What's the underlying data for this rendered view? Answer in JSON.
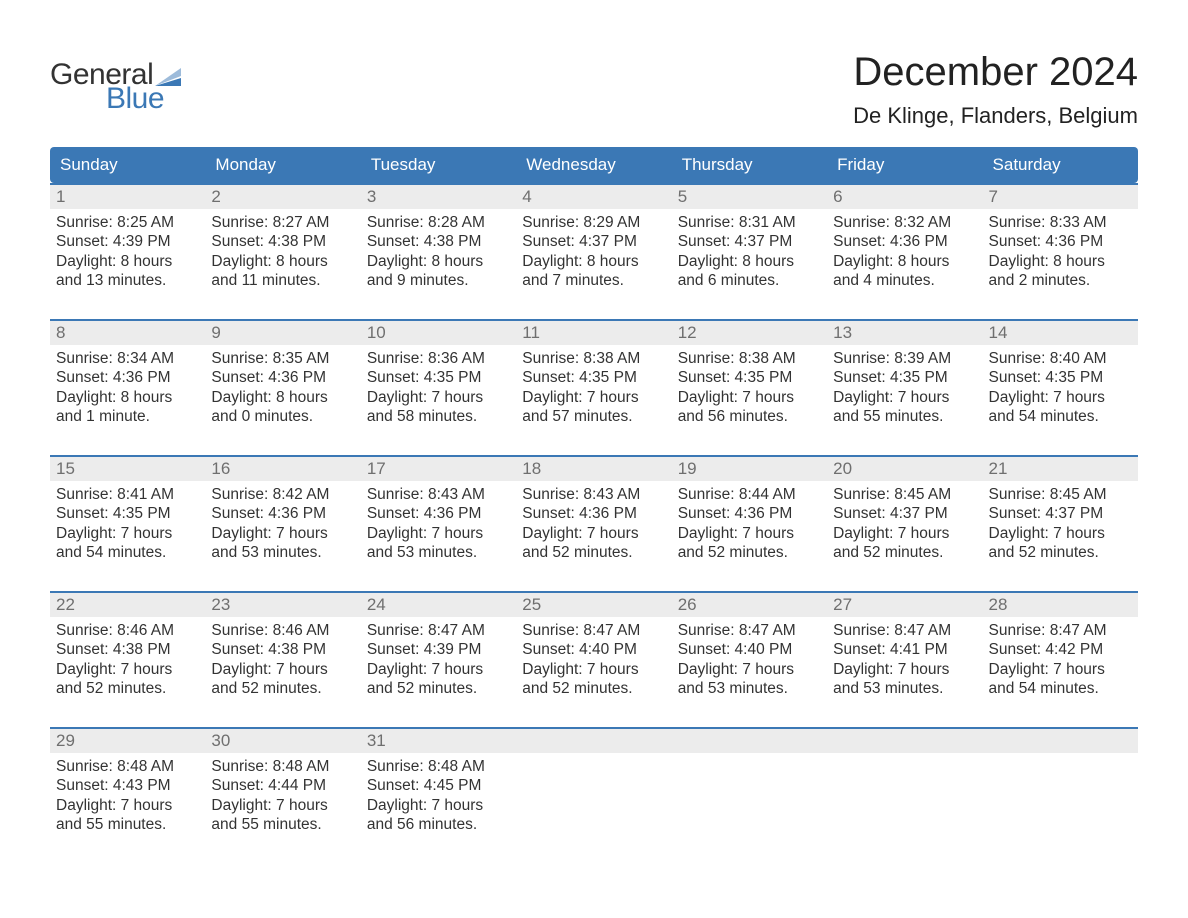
{
  "brand": {
    "text_general": "General",
    "text_blue": "Blue",
    "flag_color": "#3b78b5"
  },
  "header": {
    "month_title": "December 2024",
    "location": "De Klinge, Flanders, Belgium"
  },
  "colors": {
    "header_bg": "#3b78b5",
    "header_text": "#ffffff",
    "daynum_bg": "#ececec",
    "daynum_text": "#6f6f6f",
    "body_text": "#333333",
    "week_border": "#3b78b5",
    "page_bg": "#ffffff"
  },
  "typography": {
    "title_fontsize": 40,
    "location_fontsize": 22,
    "dayheader_fontsize": 17,
    "daynum_fontsize": 17,
    "detail_fontsize": 15.5
  },
  "layout": {
    "columns": 7,
    "rows": 5,
    "trailing_empty_cells": 4
  },
  "day_names": [
    "Sunday",
    "Monday",
    "Tuesday",
    "Wednesday",
    "Thursday",
    "Friday",
    "Saturday"
  ],
  "days": [
    {
      "n": "1",
      "sunrise": "Sunrise: 8:25 AM",
      "sunset": "Sunset: 4:39 PM",
      "dl1": "Daylight: 8 hours",
      "dl2": "and 13 minutes."
    },
    {
      "n": "2",
      "sunrise": "Sunrise: 8:27 AM",
      "sunset": "Sunset: 4:38 PM",
      "dl1": "Daylight: 8 hours",
      "dl2": "and 11 minutes."
    },
    {
      "n": "3",
      "sunrise": "Sunrise: 8:28 AM",
      "sunset": "Sunset: 4:38 PM",
      "dl1": "Daylight: 8 hours",
      "dl2": "and 9 minutes."
    },
    {
      "n": "4",
      "sunrise": "Sunrise: 8:29 AM",
      "sunset": "Sunset: 4:37 PM",
      "dl1": "Daylight: 8 hours",
      "dl2": "and 7 minutes."
    },
    {
      "n": "5",
      "sunrise": "Sunrise: 8:31 AM",
      "sunset": "Sunset: 4:37 PM",
      "dl1": "Daylight: 8 hours",
      "dl2": "and 6 minutes."
    },
    {
      "n": "6",
      "sunrise": "Sunrise: 8:32 AM",
      "sunset": "Sunset: 4:36 PM",
      "dl1": "Daylight: 8 hours",
      "dl2": "and 4 minutes."
    },
    {
      "n": "7",
      "sunrise": "Sunrise: 8:33 AM",
      "sunset": "Sunset: 4:36 PM",
      "dl1": "Daylight: 8 hours",
      "dl2": "and 2 minutes."
    },
    {
      "n": "8",
      "sunrise": "Sunrise: 8:34 AM",
      "sunset": "Sunset: 4:36 PM",
      "dl1": "Daylight: 8 hours",
      "dl2": "and 1 minute."
    },
    {
      "n": "9",
      "sunrise": "Sunrise: 8:35 AM",
      "sunset": "Sunset: 4:36 PM",
      "dl1": "Daylight: 8 hours",
      "dl2": "and 0 minutes."
    },
    {
      "n": "10",
      "sunrise": "Sunrise: 8:36 AM",
      "sunset": "Sunset: 4:35 PM",
      "dl1": "Daylight: 7 hours",
      "dl2": "and 58 minutes."
    },
    {
      "n": "11",
      "sunrise": "Sunrise: 8:38 AM",
      "sunset": "Sunset: 4:35 PM",
      "dl1": "Daylight: 7 hours",
      "dl2": "and 57 minutes."
    },
    {
      "n": "12",
      "sunrise": "Sunrise: 8:38 AM",
      "sunset": "Sunset: 4:35 PM",
      "dl1": "Daylight: 7 hours",
      "dl2": "and 56 minutes."
    },
    {
      "n": "13",
      "sunrise": "Sunrise: 8:39 AM",
      "sunset": "Sunset: 4:35 PM",
      "dl1": "Daylight: 7 hours",
      "dl2": "and 55 minutes."
    },
    {
      "n": "14",
      "sunrise": "Sunrise: 8:40 AM",
      "sunset": "Sunset: 4:35 PM",
      "dl1": "Daylight: 7 hours",
      "dl2": "and 54 minutes."
    },
    {
      "n": "15",
      "sunrise": "Sunrise: 8:41 AM",
      "sunset": "Sunset: 4:35 PM",
      "dl1": "Daylight: 7 hours",
      "dl2": "and 54 minutes."
    },
    {
      "n": "16",
      "sunrise": "Sunrise: 8:42 AM",
      "sunset": "Sunset: 4:36 PM",
      "dl1": "Daylight: 7 hours",
      "dl2": "and 53 minutes."
    },
    {
      "n": "17",
      "sunrise": "Sunrise: 8:43 AM",
      "sunset": "Sunset: 4:36 PM",
      "dl1": "Daylight: 7 hours",
      "dl2": "and 53 minutes."
    },
    {
      "n": "18",
      "sunrise": "Sunrise: 8:43 AM",
      "sunset": "Sunset: 4:36 PM",
      "dl1": "Daylight: 7 hours",
      "dl2": "and 52 minutes."
    },
    {
      "n": "19",
      "sunrise": "Sunrise: 8:44 AM",
      "sunset": "Sunset: 4:36 PM",
      "dl1": "Daylight: 7 hours",
      "dl2": "and 52 minutes."
    },
    {
      "n": "20",
      "sunrise": "Sunrise: 8:45 AM",
      "sunset": "Sunset: 4:37 PM",
      "dl1": "Daylight: 7 hours",
      "dl2": "and 52 minutes."
    },
    {
      "n": "21",
      "sunrise": "Sunrise: 8:45 AM",
      "sunset": "Sunset: 4:37 PM",
      "dl1": "Daylight: 7 hours",
      "dl2": "and 52 minutes."
    },
    {
      "n": "22",
      "sunrise": "Sunrise: 8:46 AM",
      "sunset": "Sunset: 4:38 PM",
      "dl1": "Daylight: 7 hours",
      "dl2": "and 52 minutes."
    },
    {
      "n": "23",
      "sunrise": "Sunrise: 8:46 AM",
      "sunset": "Sunset: 4:38 PM",
      "dl1": "Daylight: 7 hours",
      "dl2": "and 52 minutes."
    },
    {
      "n": "24",
      "sunrise": "Sunrise: 8:47 AM",
      "sunset": "Sunset: 4:39 PM",
      "dl1": "Daylight: 7 hours",
      "dl2": "and 52 minutes."
    },
    {
      "n": "25",
      "sunrise": "Sunrise: 8:47 AM",
      "sunset": "Sunset: 4:40 PM",
      "dl1": "Daylight: 7 hours",
      "dl2": "and 52 minutes."
    },
    {
      "n": "26",
      "sunrise": "Sunrise: 8:47 AM",
      "sunset": "Sunset: 4:40 PM",
      "dl1": "Daylight: 7 hours",
      "dl2": "and 53 minutes."
    },
    {
      "n": "27",
      "sunrise": "Sunrise: 8:47 AM",
      "sunset": "Sunset: 4:41 PM",
      "dl1": "Daylight: 7 hours",
      "dl2": "and 53 minutes."
    },
    {
      "n": "28",
      "sunrise": "Sunrise: 8:47 AM",
      "sunset": "Sunset: 4:42 PM",
      "dl1": "Daylight: 7 hours",
      "dl2": "and 54 minutes."
    },
    {
      "n": "29",
      "sunrise": "Sunrise: 8:48 AM",
      "sunset": "Sunset: 4:43 PM",
      "dl1": "Daylight: 7 hours",
      "dl2": "and 55 minutes."
    },
    {
      "n": "30",
      "sunrise": "Sunrise: 8:48 AM",
      "sunset": "Sunset: 4:44 PM",
      "dl1": "Daylight: 7 hours",
      "dl2": "and 55 minutes."
    },
    {
      "n": "31",
      "sunrise": "Sunrise: 8:48 AM",
      "sunset": "Sunset: 4:45 PM",
      "dl1": "Daylight: 7 hours",
      "dl2": "and 56 minutes."
    }
  ]
}
